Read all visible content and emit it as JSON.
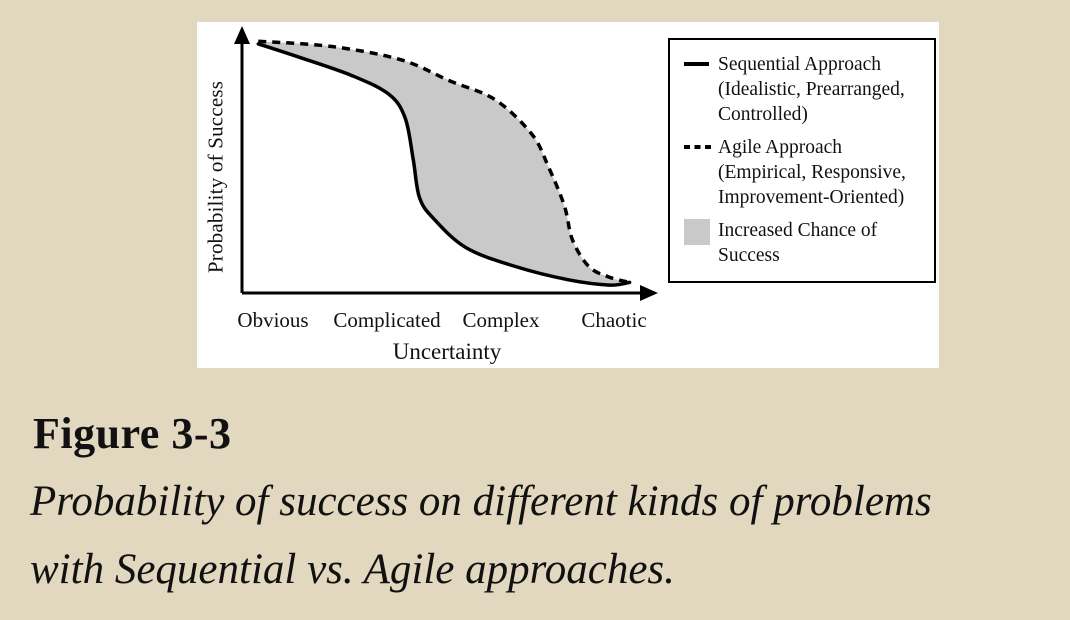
{
  "figure": {
    "label": "Figure 3-3",
    "caption_line1": "Probability of success on different kinds of problems",
    "caption_line2": "with Sequential vs. Agile approaches."
  },
  "chart": {
    "ylabel": "Probability of Success",
    "xlabel": "Uncertainty",
    "x_categories": [
      "Obvious",
      "Complicated",
      "Complex",
      "Chaotic"
    ],
    "legend_entries": [
      {
        "swatch": "solid-line",
        "lines": [
          "Sequential Approach",
          "(Idealistic, Prearranged,",
          "Controlled)"
        ]
      },
      {
        "swatch": "dashed-line",
        "lines": [
          "Agile Approach",
          "(Empirical, Responsive,",
          "Improvement-Oriented)"
        ]
      },
      {
        "swatch": "gray-square",
        "lines": [
          "Increased Chance of",
          "Success"
        ]
      }
    ],
    "colors": {
      "background": "#e2d8c0",
      "panel": "#ffffff",
      "line": "#000000",
      "shaded_fill": "#c9c9c9"
    }
  },
  "chart_data": {
    "type": "line",
    "title": "",
    "xlabel": "Uncertainty",
    "ylabel": "Probability of Success",
    "x_axis": {
      "type": "category",
      "categories": [
        "Obvious",
        "Complicated",
        "Complex",
        "Chaotic"
      ],
      "range": [
        0,
        100
      ],
      "ticks": "none"
    },
    "y_axis": {
      "range": [
        0,
        100
      ],
      "ticks": "none"
    },
    "grid": false,
    "legend_position": "top-right",
    "legend": [
      "Sequential Approach (Idealistic, Prearranged, Controlled)",
      "Agile Approach (Empirical, Responsive, Improvement-Oriented)",
      "Increased Chance of Success"
    ],
    "series": [
      {
        "name": "Sequential Approach",
        "style": "solid",
        "points": [
          [
            4,
            94
          ],
          [
            14,
            89
          ],
          [
            27,
            82
          ],
          [
            36,
            75
          ],
          [
            40,
            66
          ],
          [
            42,
            50
          ],
          [
            43.5,
            36
          ],
          [
            47,
            28
          ],
          [
            55,
            17
          ],
          [
            67,
            10
          ],
          [
            80,
            5
          ],
          [
            90,
            3
          ],
          [
            95,
            4
          ]
        ]
      },
      {
        "name": "Agile Approach",
        "style": "dashed",
        "points": [
          [
            4,
            95
          ],
          [
            22,
            93
          ],
          [
            39,
            88
          ],
          [
            51,
            80
          ],
          [
            62,
            73
          ],
          [
            71,
            60
          ],
          [
            75,
            48
          ],
          [
            79,
            33
          ],
          [
            81,
            20
          ],
          [
            85,
            10
          ],
          [
            90,
            6
          ],
          [
            95,
            4
          ]
        ]
      }
    ],
    "shaded_region": {
      "label": "Increased Chance of Success",
      "between": [
        "Agile Approach",
        "Sequential Approach"
      ]
    }
  }
}
